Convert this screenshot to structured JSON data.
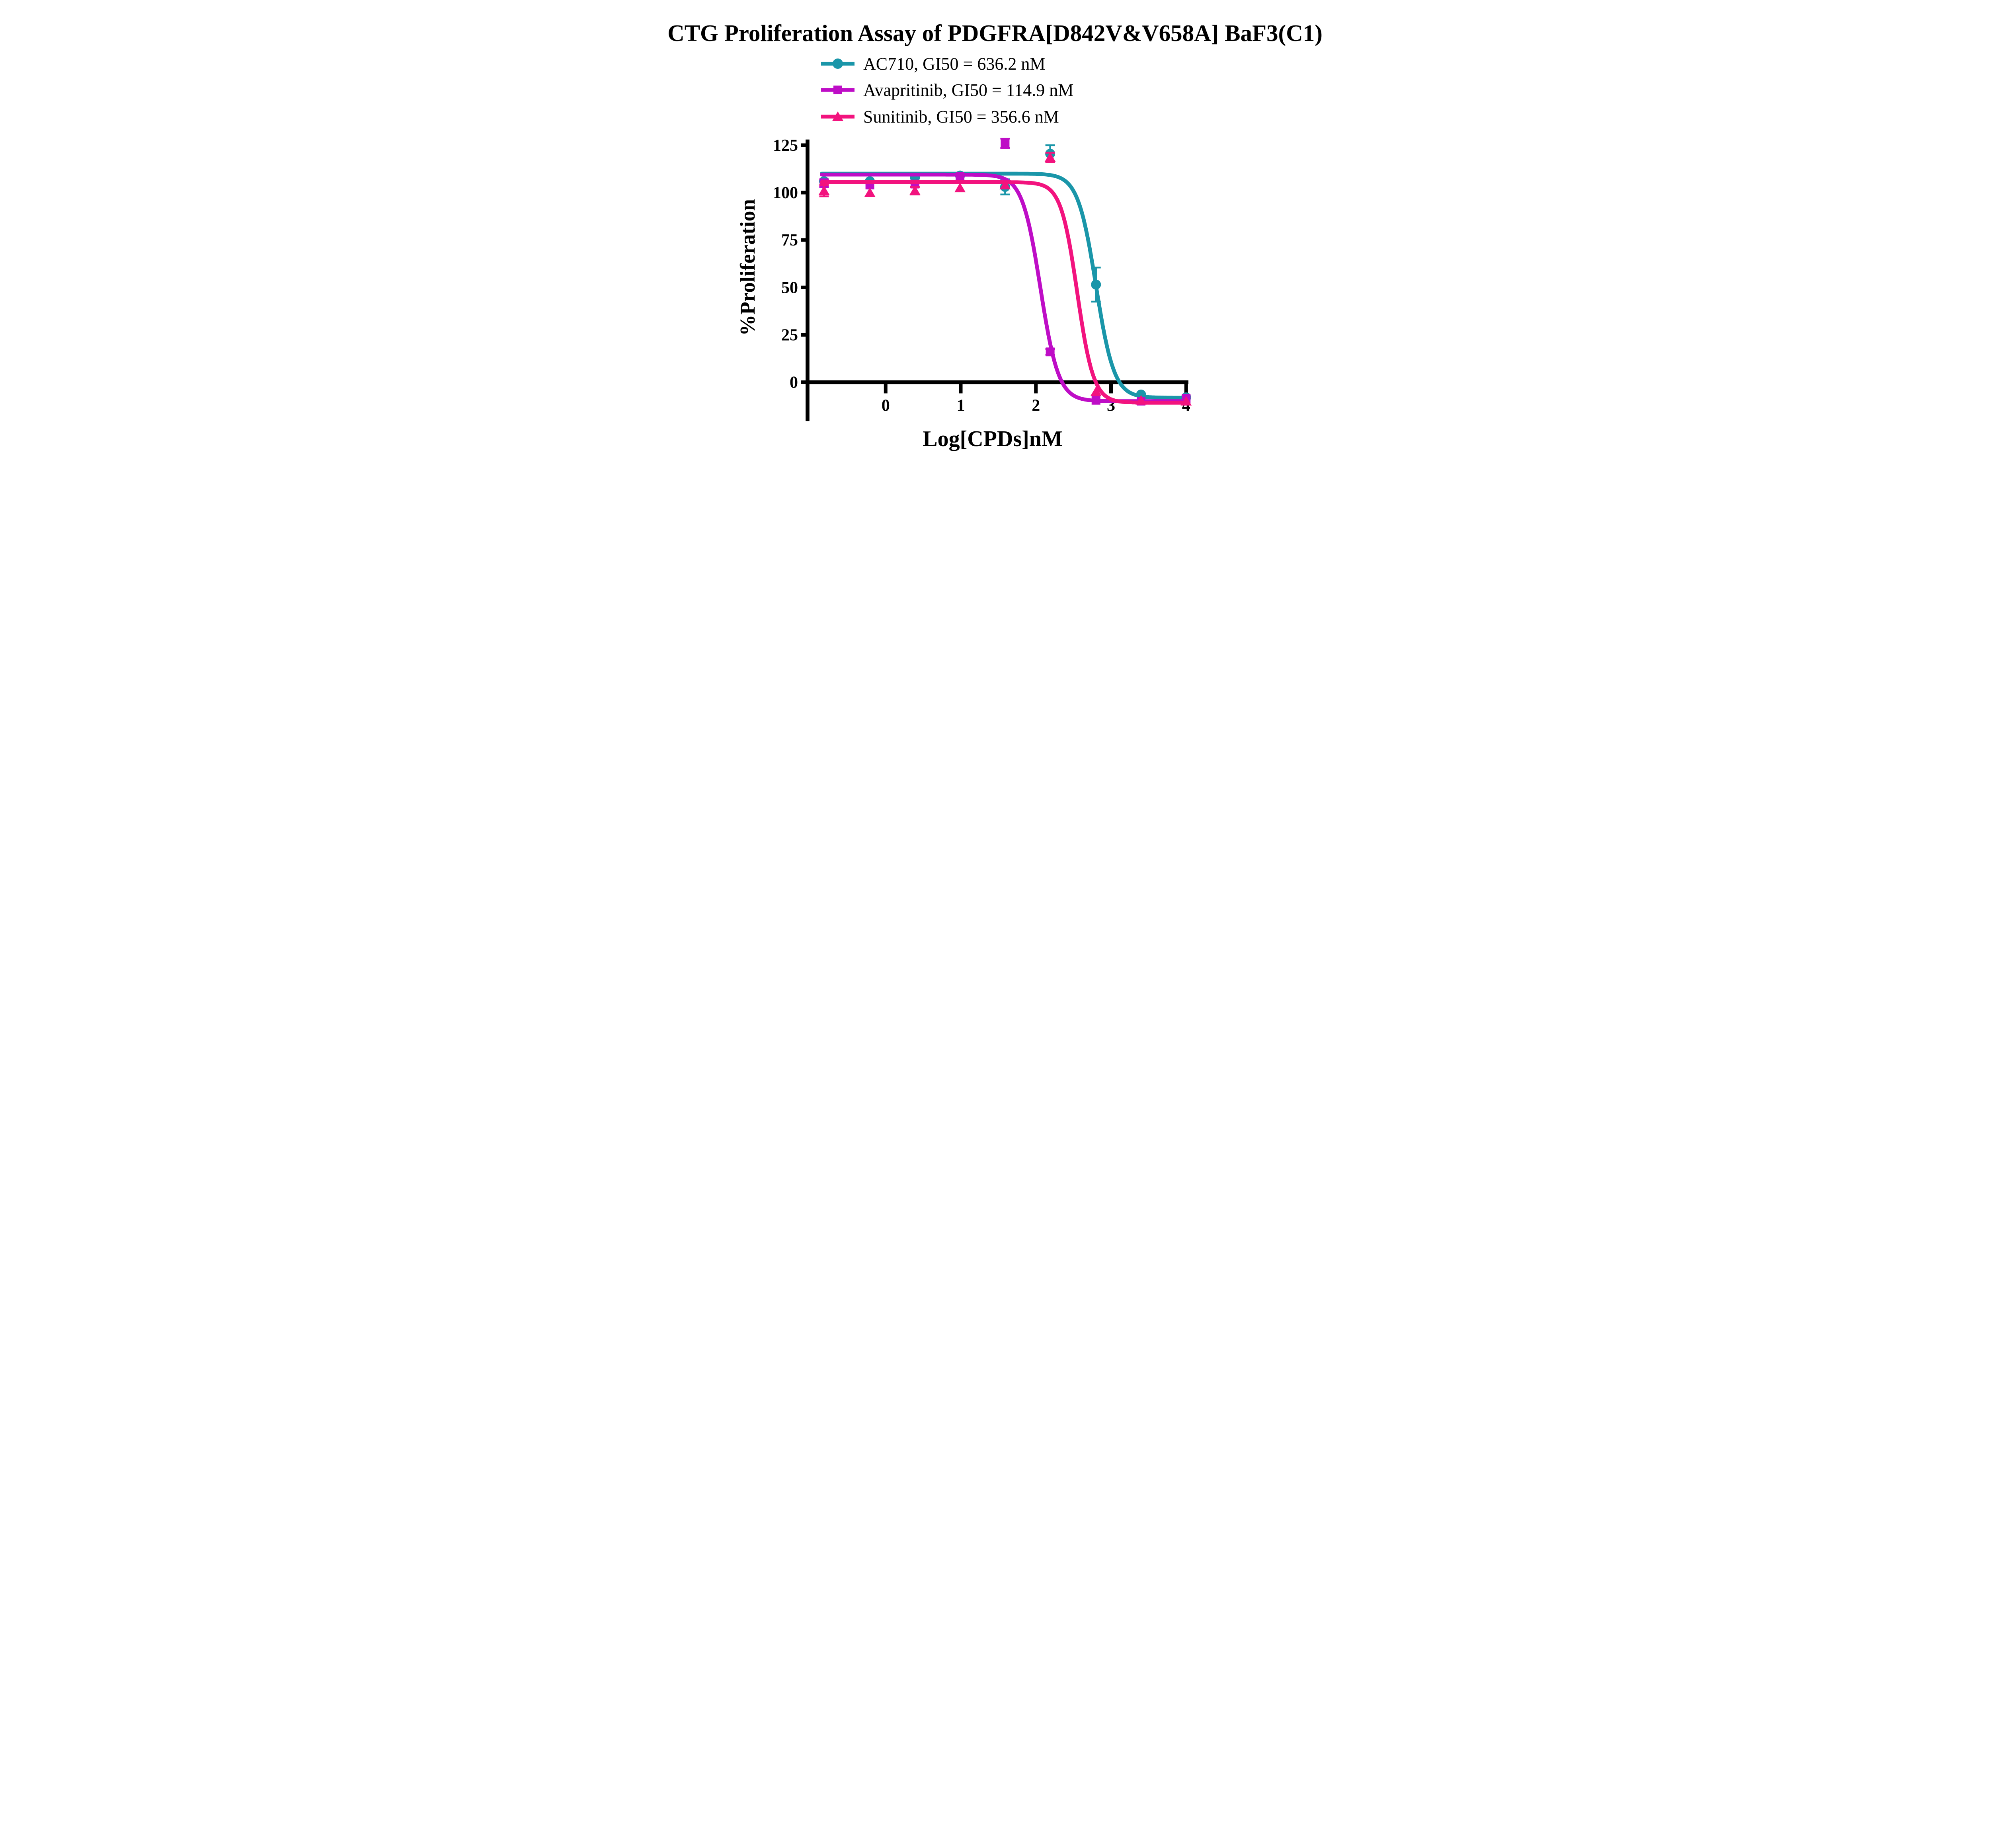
{
  "chart_data": {
    "type": "scatter",
    "subtype": "dose-response-curves",
    "title": "CTG Proliferation Assay of PDGFRA[D842V&V658A] BaF3(C1)",
    "xlabel": "Log[CPDs]nM",
    "ylabel": "%Proliferation",
    "x_ticks": [
      0,
      1,
      2,
      3,
      4
    ],
    "y_ticks": [
      0,
      25,
      50,
      75,
      100,
      125
    ],
    "xlim": [
      -1.04,
      4.03
    ],
    "ylim": [
      -20.5,
      128
    ],
    "grid": false,
    "legend_position": "top-left-under-title",
    "x": [
      -0.82,
      -0.21,
      0.39,
      0.99,
      1.59,
      2.19,
      2.8,
      3.4,
      4.0
    ],
    "series": [
      {
        "name": "AC710",
        "legend_label": "AC710, GI50 = 636.2 nM",
        "gi50_nM": 636.2,
        "color": "#1A96A9",
        "marker": "circle",
        "values": [
          106,
          106,
          108,
          109,
          103,
          120.5,
          51.5,
          -6.5,
          -8
        ],
        "errors": [
          0,
          0,
          2,
          0,
          4,
          4.5,
          9,
          0,
          0
        ],
        "fit": {
          "top": 110,
          "bottom": -8.2,
          "logIC50": 2.8,
          "hill": 3.6
        }
      },
      {
        "name": "Avapritinib",
        "legend_label": "Avapritinib, GI50 = 114.9 nM",
        "gi50_nM": 114.9,
        "color": "#BE0DC6",
        "marker": "square",
        "values": [
          105,
          104,
          104.5,
          108.5,
          126,
          16,
          -9.5,
          -10,
          -8.5
        ],
        "errors": [
          2,
          0,
          0,
          0,
          2.5,
          1.5,
          0,
          0,
          0
        ],
        "fit": {
          "top": 109.5,
          "bottom": -10.0,
          "logIC50": 2.06,
          "hill": 3.6
        }
      },
      {
        "name": "Sunitinib",
        "legend_label": "Sunitinib, GI50 = 356.6 nM",
        "gi50_nM": 356.6,
        "color": "#F2137E",
        "marker": "triangle",
        "values": [
          101,
          100,
          101,
          102.5,
          104,
          118.5,
          -5,
          -9.5,
          -10
        ],
        "errors": [
          3,
          0,
          2,
          0,
          0,
          2.5,
          0,
          0,
          0
        ],
        "fit": {
          "top": 105.5,
          "bottom": -10.8,
          "logIC50": 2.55,
          "hill": 4.0
        }
      }
    ]
  }
}
